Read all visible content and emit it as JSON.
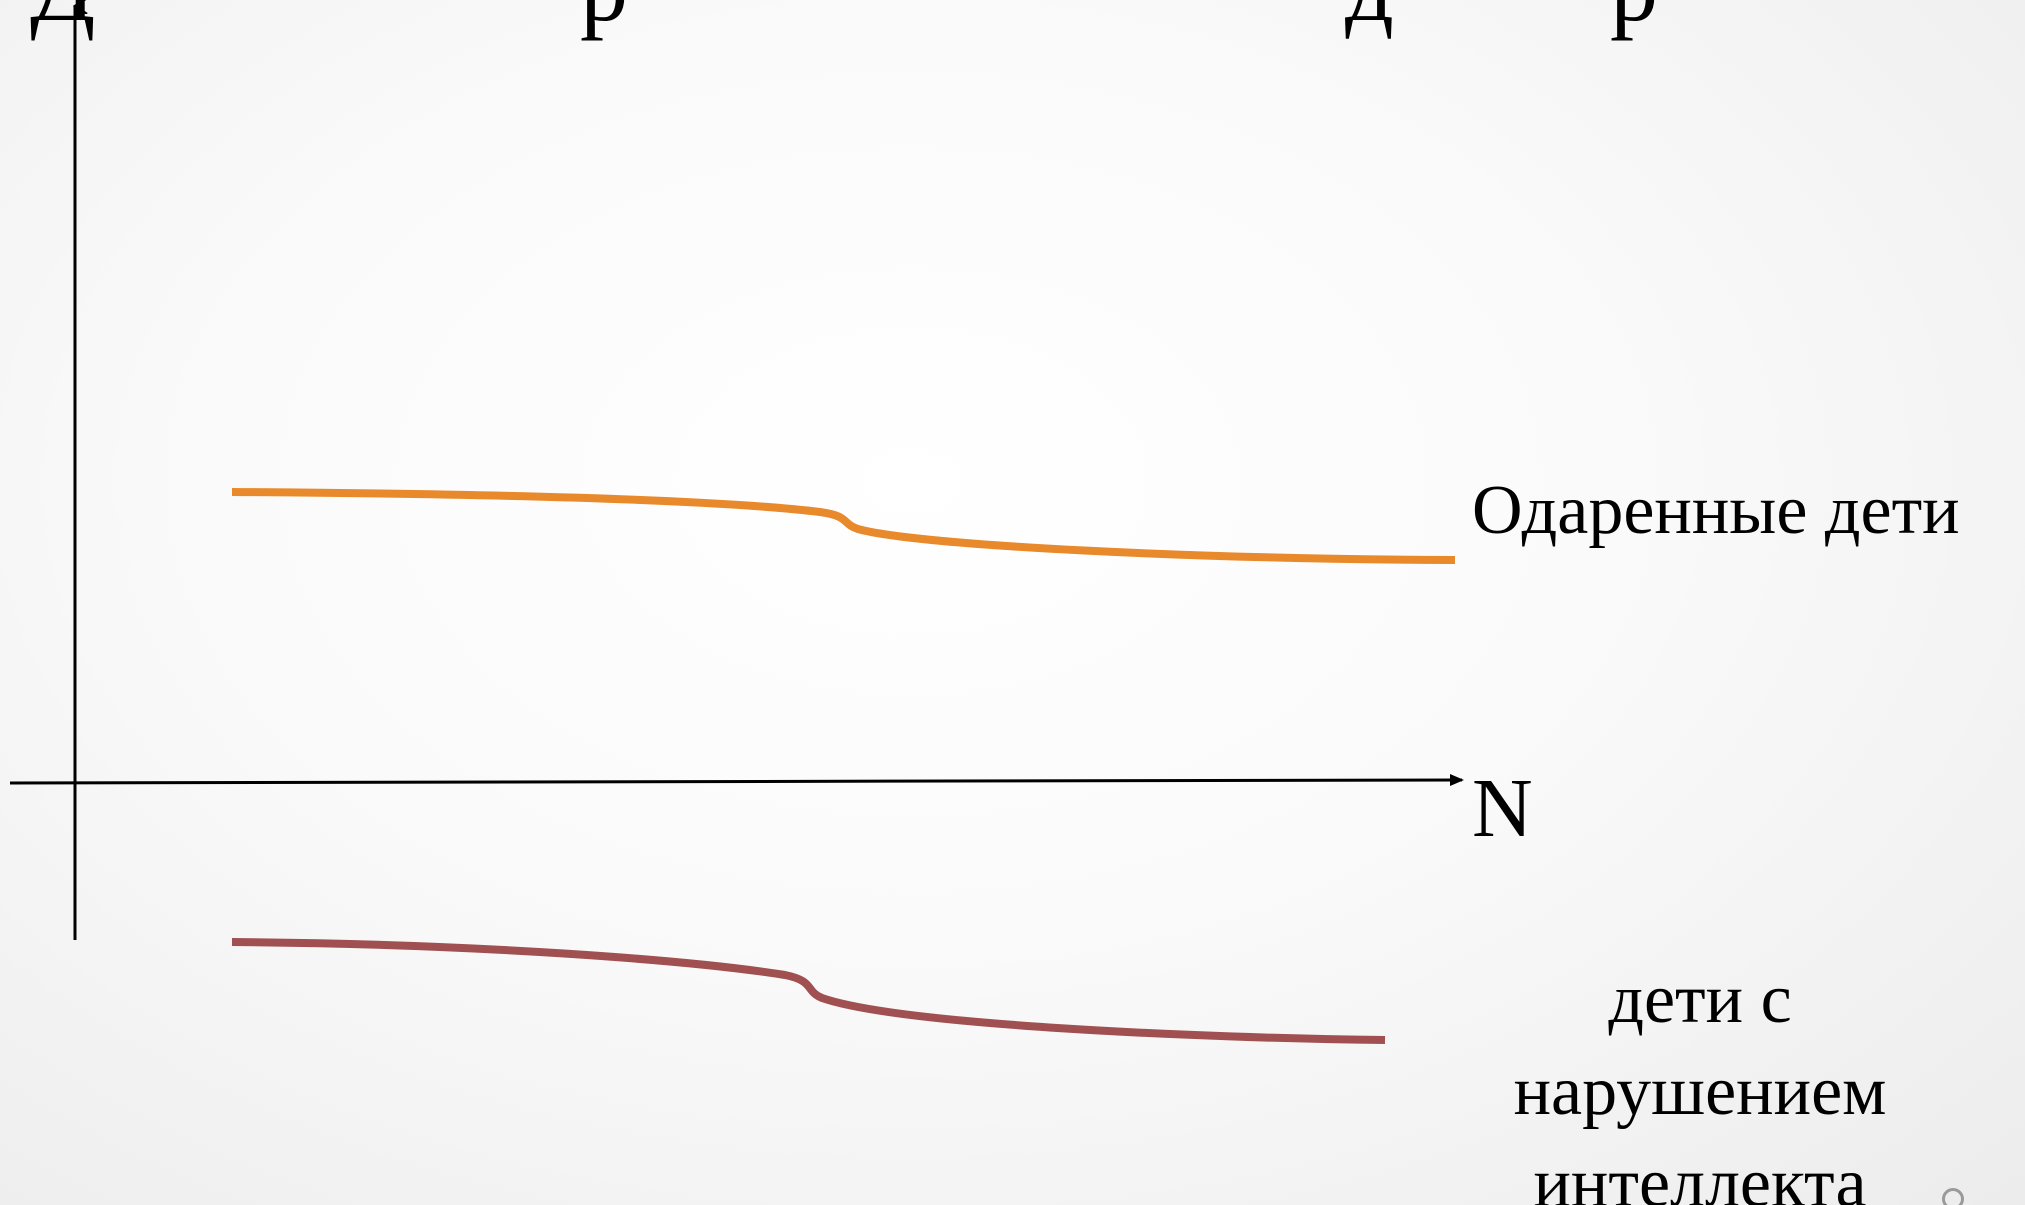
{
  "title_fragments": [
    "Д",
    "р",
    "д",
    "р"
  ],
  "axes": {
    "x_label": "N",
    "x_arrow": true,
    "y_arrow": true,
    "axis_color": "#000000"
  },
  "curves": [
    {
      "name": "gifted",
      "label": "Одаренные дети",
      "color": "#e8892b",
      "shape": "high level, slight decline with a small step in the middle"
    },
    {
      "name": "impaired",
      "label_lines": [
        "дети с",
        "нарушением",
        "интеллекта"
      ],
      "color": "#a05050",
      "shape": "below the N axis, slight decline with a small step in the middle"
    }
  ]
}
